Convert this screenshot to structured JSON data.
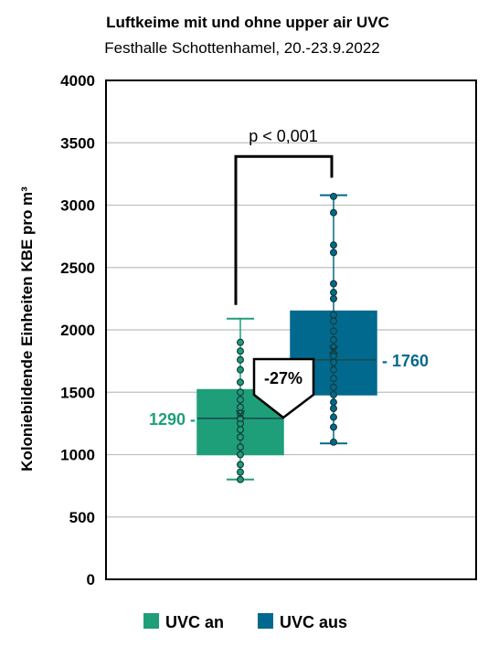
{
  "chart_data": {
    "type": "box",
    "title": "Luftkeime mit und ohne upper air UVC",
    "subtitle": "Festhalle Schottenhamel, 20.-23.9.2022",
    "ylabel": "Koloniebildende Einheiten KBE pro m³",
    "ylim": [
      0,
      4000
    ],
    "yticks": [
      0,
      500,
      1000,
      1500,
      2000,
      2500,
      3000,
      3500,
      4000
    ],
    "grid": true,
    "legend_position": "bottom",
    "series": [
      {
        "name": "UVC an",
        "color": "#1f9e7a",
        "label_color": "#1f9e7a",
        "min": 800,
        "q1": 1000,
        "median": 1290,
        "q3": 1520,
        "max": 2090,
        "mean": 1320,
        "median_label": "1290 -",
        "points": [
          800,
          860,
          920,
          1000,
          1060,
          1140,
          1200,
          1250,
          1290,
          1330,
          1380,
          1440,
          1500,
          1580,
          1680,
          1760,
          1830,
          1900
        ]
      },
      {
        "name": "UVC aus",
        "color": "#02698e",
        "label_color": "#02698e",
        "min": 1090,
        "q1": 1480,
        "median": 1760,
        "q3": 2150,
        "max": 3080,
        "mean": 1840,
        "median_label": "- 1760",
        "points": [
          1100,
          1220,
          1300,
          1370,
          1420,
          1480,
          1540,
          1610,
          1680,
          1740,
          1790,
          1860,
          1920,
          1990,
          2070,
          2120,
          2250,
          2300,
          2370,
          2620,
          2680,
          2940,
          3070
        ]
      }
    ],
    "annotations": {
      "p_value": "p < 0,001",
      "change_label": "-27%"
    }
  }
}
